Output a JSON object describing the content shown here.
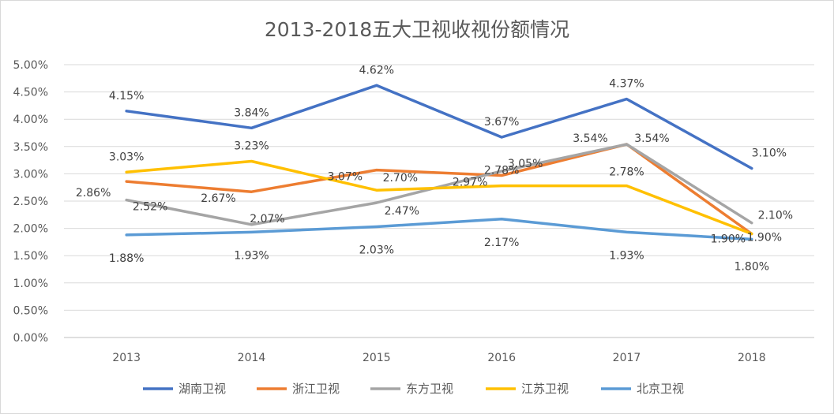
{
  "chart_data": {
    "type": "line",
    "title": "2013-2018五大卫视收视份额情况",
    "xlabel": "",
    "ylabel": "",
    "categories": [
      "2013",
      "2014",
      "2015",
      "2016",
      "2017",
      "2018"
    ],
    "ylim": [
      0,
      0.05
    ],
    "y_ticks": [
      "0.00%",
      "0.50%",
      "1.00%",
      "1.50%",
      "2.00%",
      "2.50%",
      "3.00%",
      "3.50%",
      "4.00%",
      "4.50%",
      "5.00%"
    ],
    "grid": true,
    "legend_position": "bottom",
    "series": [
      {
        "name": "湖南卫视",
        "color": "#4472c4",
        "values": [
          0.0415,
          0.0384,
          0.0462,
          0.0367,
          0.0437,
          0.031
        ],
        "labels": [
          "4.15%",
          "3.84%",
          "4.62%",
          "3.67%",
          "4.37%",
          "3.10%"
        ]
      },
      {
        "name": "浙江卫视",
        "color": "#ed7d31",
        "values": [
          0.0286,
          0.0267,
          0.0307,
          0.0297,
          0.0354,
          0.019
        ],
        "labels": [
          "2.86%",
          "2.67%",
          "3.07%",
          "2.97%",
          "3.54%",
          "1.90%"
        ]
      },
      {
        "name": "东方卫视",
        "color": "#a5a5a5",
        "values": [
          0.0252,
          0.0207,
          0.0247,
          0.0305,
          0.0354,
          0.021
        ],
        "labels": [
          "2.52%",
          "2.07%",
          "2.47%",
          "3.05%",
          "3.54%",
          "2.10%"
        ]
      },
      {
        "name": "江苏卫视",
        "color": "#ffc000",
        "values": [
          0.0303,
          0.0323,
          0.027,
          0.0278,
          0.0278,
          0.019
        ],
        "labels": [
          "3.03%",
          "3.23%",
          "2.70%",
          "2.78%",
          "2.78%",
          "1.90%"
        ]
      },
      {
        "name": "北京卫视",
        "color": "#5b9bd5",
        "values": [
          0.0188,
          0.0193,
          0.0203,
          0.0217,
          0.0193,
          0.018
        ],
        "labels": [
          "1.88%",
          "1.93%",
          "2.03%",
          "2.17%",
          "1.93%",
          "1.80%"
        ]
      }
    ]
  }
}
